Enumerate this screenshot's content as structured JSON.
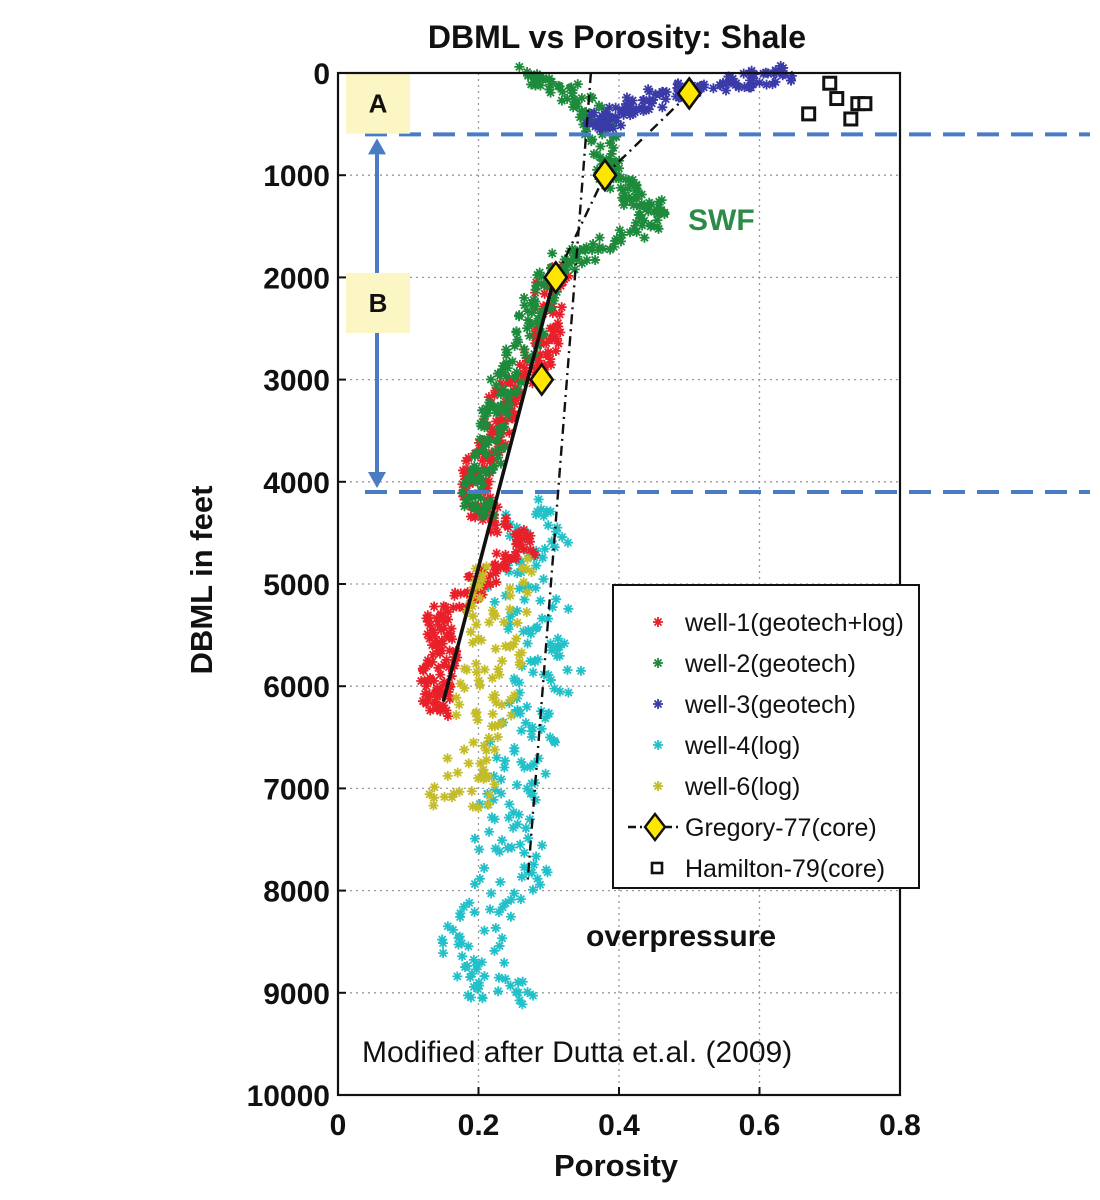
{
  "chart_data": {
    "type": "scatter",
    "title": "DBML vs Porosity: Shale",
    "xlabel": "Porosity",
    "ylabel": "DBML in feet",
    "xlim": [
      0,
      0.8
    ],
    "ylim": [
      10000,
      0
    ],
    "y_inverted": true,
    "x_ticks": [
      "0",
      "0.2",
      "0.4",
      "0.6",
      "0.8"
    ],
    "y_ticks": [
      "0",
      "1000",
      "2000",
      "3000",
      "4000",
      "5000",
      "6000",
      "7000",
      "8000",
      "9000",
      "10000"
    ],
    "grid": "dotted",
    "legend_position": "bottom-right",
    "legend": [
      {
        "label": "well-1(geotech+log)",
        "color": "#e8202a",
        "marker": "*"
      },
      {
        "label": "well-2(geotech)",
        "color": "#1e8a3c",
        "marker": "*"
      },
      {
        "label": "well-3(geotech)",
        "color": "#3a3aa8",
        "marker": "*"
      },
      {
        "label": "well-4(log)",
        "color": "#22c0c8",
        "marker": "*"
      },
      {
        "label": "well-6(log)",
        "color": "#c4bc28",
        "marker": "*"
      },
      {
        "label": "Gregory-77(core)",
        "color": "#ffe600",
        "marker": "diamond",
        "line": "dash-dot"
      },
      {
        "label": "Hamilton-79(core)",
        "color": "#111111",
        "marker": "square"
      }
    ],
    "series": [
      {
        "name": "well-1(geotech+log)",
        "color": "#e8202a",
        "marker": "*",
        "trace": [
          [
            0.31,
            1900
          ],
          [
            0.3,
            2200
          ],
          [
            0.3,
            2500
          ],
          [
            0.29,
            2700
          ],
          [
            0.27,
            2900
          ],
          [
            0.24,
            3100
          ],
          [
            0.23,
            3300
          ],
          [
            0.23,
            3500
          ],
          [
            0.22,
            3700
          ],
          [
            0.2,
            3900
          ],
          [
            0.19,
            4100
          ],
          [
            0.21,
            4300
          ],
          [
            0.25,
            4500
          ],
          [
            0.26,
            4700
          ],
          [
            0.21,
            4900
          ],
          [
            0.19,
            5100
          ],
          [
            0.15,
            5300
          ],
          [
            0.14,
            5500
          ],
          [
            0.15,
            5700
          ],
          [
            0.14,
            5900
          ],
          [
            0.14,
            6100
          ],
          [
            0.14,
            6250
          ]
        ]
      },
      {
        "name": "well-2(geotech)",
        "color": "#1e8a3c",
        "marker": "*",
        "trace": [
          [
            0.26,
            0
          ],
          [
            0.3,
            100
          ],
          [
            0.35,
            300
          ],
          [
            0.37,
            500
          ],
          [
            0.38,
            800
          ],
          [
            0.39,
            1000
          ],
          [
            0.42,
            1200
          ],
          [
            0.44,
            1300
          ],
          [
            0.45,
            1450
          ],
          [
            0.38,
            1700
          ],
          [
            0.33,
            1800
          ],
          [
            0.3,
            2000
          ],
          [
            0.28,
            2300
          ],
          [
            0.27,
            2600
          ],
          [
            0.25,
            2900
          ],
          [
            0.23,
            3200
          ],
          [
            0.22,
            3500
          ],
          [
            0.21,
            3800
          ],
          [
            0.2,
            4100
          ],
          [
            0.2,
            4300
          ]
        ]
      },
      {
        "name": "well-3(geotech)",
        "color": "#3a3aa8",
        "marker": "*",
        "trace": [
          [
            0.65,
            0
          ],
          [
            0.6,
            50
          ],
          [
            0.55,
            100
          ],
          [
            0.5,
            150
          ],
          [
            0.45,
            250
          ],
          [
            0.41,
            350
          ],
          [
            0.38,
            450
          ],
          [
            0.37,
            500
          ]
        ]
      },
      {
        "name": "well-4(log)",
        "color": "#22c0c8",
        "marker": "*",
        "trace": [
          [
            0.27,
            4200
          ],
          [
            0.28,
            4600
          ],
          [
            0.26,
            5000
          ],
          [
            0.29,
            5400
          ],
          [
            0.3,
            5800
          ],
          [
            0.28,
            6200
          ],
          [
            0.26,
            6600
          ],
          [
            0.25,
            7000
          ],
          [
            0.24,
            7400
          ],
          [
            0.25,
            7800
          ],
          [
            0.22,
            8200
          ],
          [
            0.19,
            8600
          ],
          [
            0.21,
            8900
          ],
          [
            0.24,
            9100
          ]
        ]
      },
      {
        "name": "well-6(log)",
        "color": "#c4bc28",
        "marker": "*",
        "trace": [
          [
            0.24,
            4800
          ],
          [
            0.23,
            5200
          ],
          [
            0.22,
            5600
          ],
          [
            0.21,
            6000
          ],
          [
            0.2,
            6400
          ],
          [
            0.18,
            6900
          ],
          [
            0.17,
            7200
          ]
        ]
      }
    ],
    "gregory_77": [
      [
        0.5,
        200
      ],
      [
        0.38,
        1000
      ],
      [
        0.31,
        2000
      ],
      [
        0.29,
        3000
      ]
    ],
    "hamilton_79": [
      [
        0.67,
        400
      ],
      [
        0.7,
        100
      ],
      [
        0.71,
        250
      ],
      [
        0.73,
        450
      ],
      [
        0.74,
        300
      ],
      [
        0.75,
        300
      ]
    ],
    "trend_solid": [
      [
        0.31,
        1950
      ],
      [
        0.15,
        6150
      ]
    ],
    "trend_dashdot_1": [
      [
        0.5,
        200
      ],
      [
        0.38,
        1000
      ],
      [
        0.31,
        2000
      ]
    ],
    "trend_dashdot_2": [
      [
        0.36,
        0
      ],
      [
        0.27,
        7900
      ]
    ],
    "boundaries": [
      600,
      4100
    ],
    "zones": [
      {
        "label": "A",
        "y": 300
      },
      {
        "label": "B",
        "y": 2250
      }
    ],
    "annotations": [
      "SWF",
      "overpressure"
    ],
    "credit": "Modified after Dutta et.al. (2009)"
  }
}
